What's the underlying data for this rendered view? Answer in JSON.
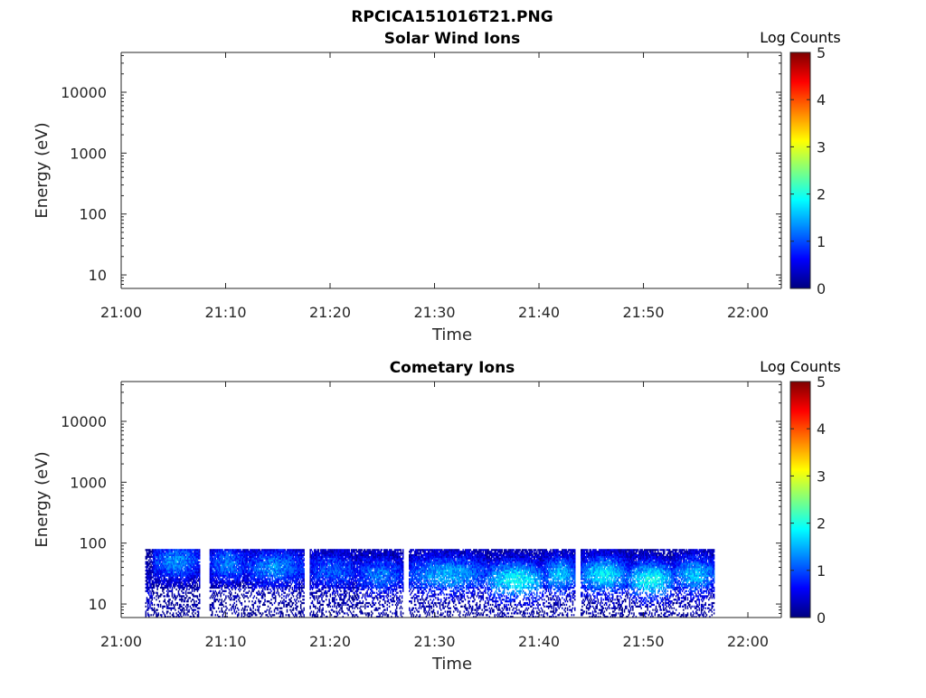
{
  "figure_title": "RPCICA151016T21.PNG",
  "colors": {
    "axis": "#262626",
    "colormap": [
      "#00007f",
      "#0000ff",
      "#007fff",
      "#00ffff",
      "#7fff7f",
      "#ffff00",
      "#ff7f00",
      "#ff0000",
      "#7f0000"
    ]
  },
  "chart_data": [
    {
      "type": "heatmap",
      "title": "Solar Wind Ions",
      "xlabel": "Time",
      "ylabel": "Energy (eV)",
      "x_ticks": [
        "21:00",
        "21:10",
        "21:20",
        "21:30",
        "21:40",
        "21:50",
        "22:00"
      ],
      "xlim_minutes": [
        0,
        63.2
      ],
      "y_scale": "log",
      "y_ticks": [
        "10",
        "100",
        "1000",
        "10000"
      ],
      "ylim": [
        6,
        45000
      ],
      "colorbar": {
        "label": "Log Counts",
        "range": [
          0,
          5
        ],
        "ticks": [
          "0",
          "1",
          "2",
          "3",
          "4",
          "5"
        ]
      },
      "segments": []
    },
    {
      "type": "heatmap",
      "title": "Cometary Ions",
      "xlabel": "Time",
      "ylabel": "Energy (eV)",
      "x_ticks": [
        "21:00",
        "21:10",
        "21:20",
        "21:30",
        "21:40",
        "21:50",
        "22:00"
      ],
      "xlim_minutes": [
        0,
        63.2
      ],
      "y_scale": "log",
      "y_ticks": [
        "10",
        "100",
        "1000",
        "10000"
      ],
      "ylim": [
        6,
        45000
      ],
      "colorbar": {
        "label": "Log Counts",
        "range": [
          0,
          5
        ],
        "ticks": [
          "0",
          "1",
          "2",
          "3",
          "4",
          "5"
        ]
      },
      "data_window": {
        "t_start_min": 2.3,
        "t_end_min": 56.8,
        "e_min": 6,
        "e_max": 80
      },
      "segments": [
        {
          "t_start": 2.3,
          "t_end": 3.0,
          "peak_log_counts": 0.5,
          "peak_energy_ev": 15
        },
        {
          "t_start": 3.0,
          "t_end": 7.5,
          "peak_log_counts": 1.3,
          "peak_energy_ev": 50
        },
        {
          "t_start": 8.5,
          "t_end": 12.0,
          "peak_log_counts": 1.2,
          "peak_energy_ev": 45
        },
        {
          "t_start": 12.0,
          "t_end": 17.5,
          "peak_log_counts": 1.3,
          "peak_energy_ev": 40
        },
        {
          "t_start": 18.0,
          "t_end": 22.5,
          "peak_log_counts": 1.1,
          "peak_energy_ev": 35
        },
        {
          "t_start": 22.5,
          "t_end": 27.0,
          "peak_log_counts": 1.2,
          "peak_energy_ev": 30
        },
        {
          "t_start": 27.5,
          "t_end": 35.0,
          "peak_log_counts": 1.5,
          "peak_energy_ev": 30
        },
        {
          "t_start": 35.0,
          "t_end": 40.5,
          "peak_log_counts": 1.9,
          "peak_energy_ev": 25
        },
        {
          "t_start": 40.5,
          "t_end": 43.5,
          "peak_log_counts": 1.6,
          "peak_energy_ev": 30
        },
        {
          "t_start": 44.0,
          "t_end": 48.5,
          "peak_log_counts": 1.8,
          "peak_energy_ev": 30
        },
        {
          "t_start": 48.5,
          "t_end": 53.0,
          "peak_log_counts": 1.9,
          "peak_energy_ev": 25
        },
        {
          "t_start": 53.0,
          "t_end": 56.8,
          "peak_log_counts": 1.6,
          "peak_energy_ev": 30
        }
      ]
    }
  ]
}
